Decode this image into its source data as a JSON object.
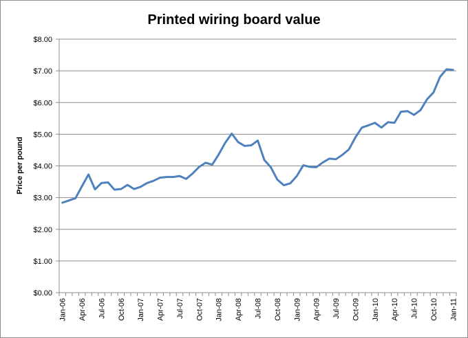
{
  "chart_data": {
    "type": "line",
    "title": "Printed wiring board value",
    "xlabel": "",
    "ylabel": "Price per pound",
    "ylim": [
      0,
      8
    ],
    "y_ticks": [
      "$0.00",
      "$1.00",
      "$2.00",
      "$3.00",
      "$4.00",
      "$5.00",
      "$6.00",
      "$7.00",
      "$8.00"
    ],
    "x_ticks": [
      "Jan-06",
      "Apr-06",
      "Jul-06",
      "Oct-06",
      "Jan-07",
      "Apr-07",
      "Jul-07",
      "Oct-07",
      "Jan-08",
      "Apr-08",
      "Jul-08",
      "Oct-08",
      "Jan-09",
      "Apr-09",
      "Jul-09",
      "Oct-09",
      "Jan-10",
      "Apr-10",
      "Jul-10",
      "Oct-10",
      "Jan-11"
    ],
    "grid": true,
    "legend": "none",
    "line_color": "#4f81bd",
    "series": [
      {
        "x": [
          "Jan-06",
          "Feb-06",
          "Mar-06",
          "Apr-06",
          "May-06",
          "Jun-06",
          "Jul-06",
          "Aug-06",
          "Sep-06",
          "Oct-06",
          "Nov-06",
          "Dec-06",
          "Jan-07",
          "Feb-07",
          "Mar-07",
          "Apr-07",
          "May-07",
          "Jun-07",
          "Jul-07",
          "Aug-07",
          "Sep-07",
          "Oct-07",
          "Nov-07",
          "Dec-07",
          "Jan-08",
          "Feb-08",
          "Mar-08",
          "Apr-08",
          "May-08",
          "Jun-08",
          "Jul-08",
          "Aug-08",
          "Sep-08",
          "Oct-08",
          "Nov-08",
          "Dec-08",
          "Jan-09",
          "Feb-09",
          "Mar-09",
          "Apr-09",
          "May-09",
          "Jun-09",
          "Jul-09",
          "Aug-09",
          "Sep-09",
          "Oct-09",
          "Nov-09",
          "Dec-09",
          "Jan-10",
          "Feb-10",
          "Mar-10",
          "Apr-10",
          "May-10",
          "Jun-10",
          "Jul-10",
          "Aug-10",
          "Sep-10",
          "Oct-10",
          "Nov-10",
          "Dec-10",
          "Jan-11"
        ],
        "values": [
          2.84,
          2.91,
          2.98,
          3.36,
          3.73,
          3.26,
          3.46,
          3.48,
          3.25,
          3.27,
          3.4,
          3.27,
          3.34,
          3.46,
          3.53,
          3.63,
          3.65,
          3.65,
          3.68,
          3.59,
          3.76,
          3.97,
          4.1,
          4.04,
          4.36,
          4.73,
          5.02,
          4.75,
          4.63,
          4.65,
          4.8,
          4.19,
          3.96,
          3.57,
          3.39,
          3.45,
          3.68,
          4.02,
          3.97,
          3.96,
          4.11,
          4.23,
          4.21,
          4.35,
          4.52,
          4.9,
          5.21,
          5.28,
          5.36,
          5.21,
          5.38,
          5.36,
          5.71,
          5.73,
          5.61,
          5.76,
          6.1,
          6.32,
          6.81,
          7.05,
          7.03
        ]
      }
    ]
  }
}
